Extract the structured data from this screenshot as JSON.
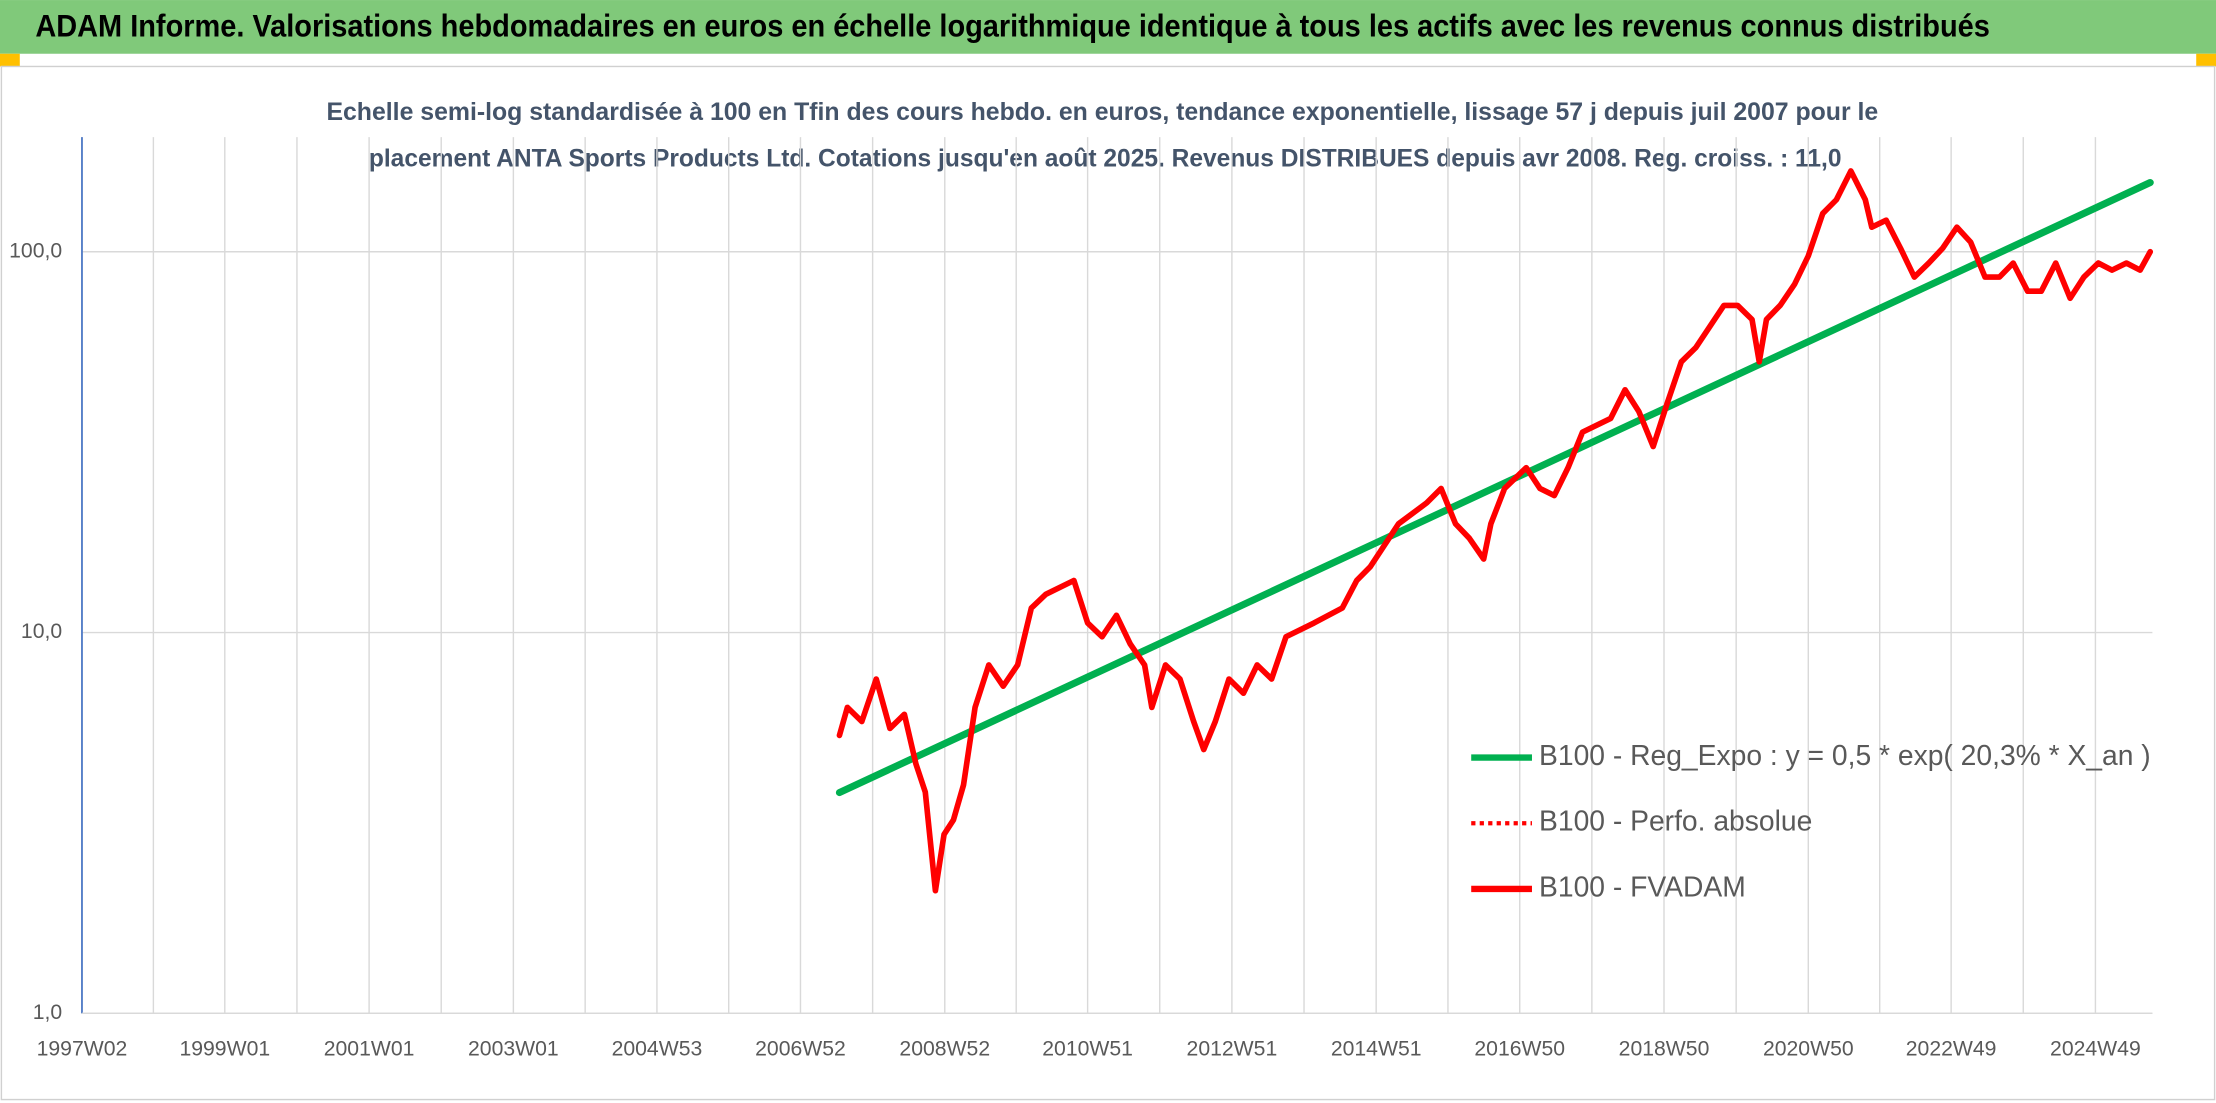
{
  "chart_data": {
    "type": "line",
    "title": "ADAM Informe. Valorisations hebdomadaires en euros en échelle logarithmique identique à tous les actifs avec les revenus connus distribués",
    "subtitle": [
      "Echelle semi-log standardisée à 100 en Tfin des cours hebdo. en euros, tendance exponentielle, lissage 57 j depuis juil 2007 pour le",
      "placement ANTA Sports Products Ltd. Cotations jusqu'en août 2025. Revenus DISTRIBUES depuis avr 2008. Reg. croiss. : 11,0"
    ],
    "log_scale": true,
    "grid": true,
    "legend": "right",
    "xlim": [
      1997.02,
      2025.72
    ],
    "xticks": [
      {
        "value": 1997.02,
        "label": "1997W02"
      },
      {
        "value": 1999.0,
        "label": "1999W01"
      },
      {
        "value": 2001.0,
        "label": "2001W01"
      },
      {
        "value": 2003.0,
        "label": "2003W01"
      },
      {
        "value": 2004.99,
        "label": "2004W53"
      },
      {
        "value": 2006.98,
        "label": "2006W52"
      },
      {
        "value": 2008.98,
        "label": "2008W52"
      },
      {
        "value": 2010.96,
        "label": "2010W51"
      },
      {
        "value": 2012.96,
        "label": "2012W51"
      },
      {
        "value": 2014.96,
        "label": "2014W51"
      },
      {
        "value": 2016.95,
        "label": "2016W50"
      },
      {
        "value": 2018.95,
        "label": "2018W50"
      },
      {
        "value": 2020.95,
        "label": "2020W50"
      },
      {
        "value": 2022.93,
        "label": "2022W49"
      },
      {
        "value": 2024.93,
        "label": "2024W49"
      }
    ],
    "ylim": [
      1,
      200
    ],
    "yticks": [
      {
        "value": 1,
        "label": "1,0"
      },
      {
        "value": 10,
        "label": "10,0"
      },
      {
        "value": 100,
        "label": "100,0"
      }
    ],
    "series": [
      {
        "name": "B100 - Reg_Expo : y = 0,5 * exp( 20,3% *  X_an )",
        "color": "#00b050",
        "style": "solid",
        "x": [
          2007.52,
          2025.69
        ],
        "values": [
          3.8,
          152
        ]
      },
      {
        "name": "B100 - Perfo. absolue",
        "color": "#ff0000",
        "style": "dotted",
        "x": [],
        "values": []
      },
      {
        "name": "B100 - FVADAM",
        "color": "#ff0000",
        "style": "solid",
        "x": [
          2007.52,
          2007.63,
          2007.83,
          2008.03,
          2008.22,
          2008.42,
          2008.58,
          2008.71,
          2008.85,
          2008.97,
          2009.1,
          2009.24,
          2009.4,
          2009.59,
          2009.79,
          2009.99,
          2010.18,
          2010.38,
          2010.77,
          2010.96,
          2011.16,
          2011.36,
          2011.55,
          2011.75,
          2011.85,
          2012.04,
          2012.24,
          2012.43,
          2012.57,
          2012.73,
          2012.92,
          2013.12,
          2013.31,
          2013.51,
          2013.71,
          2014.1,
          2014.49,
          2014.69,
          2014.88,
          2015.27,
          2015.66,
          2015.86,
          2016.06,
          2016.25,
          2016.45,
          2016.55,
          2016.74,
          2017.04,
          2017.23,
          2017.43,
          2017.62,
          2017.82,
          2018.21,
          2018.41,
          2018.6,
          2018.8,
          2018.99,
          2019.19,
          2019.39,
          2019.78,
          2019.97,
          2020.17,
          2020.27,
          2020.37,
          2020.56,
          2020.76,
          2020.95,
          2021.15,
          2021.34,
          2021.54,
          2021.74,
          2021.83,
          2022.03,
          2022.23,
          2022.42,
          2022.62,
          2022.81,
          2023.01,
          2023.2,
          2023.4,
          2023.6,
          2023.79,
          2023.99,
          2024.18,
          2024.38,
          2024.58,
          2024.77,
          2024.97,
          2025.16,
          2025.36,
          2025.55,
          2025.69
        ],
        "values": [
          5.37,
          6.36,
          5.84,
          7.55,
          5.6,
          6.1,
          4.52,
          3.81,
          2.1,
          2.95,
          3.22,
          3.98,
          6.36,
          8.22,
          7.23,
          8.22,
          11.6,
          12.6,
          13.7,
          10.6,
          9.75,
          11.1,
          9.34,
          8.22,
          6.36,
          8.22,
          7.55,
          5.84,
          4.93,
          5.84,
          7.55,
          6.93,
          8.22,
          7.55,
          9.75,
          10.6,
          11.6,
          13.7,
          14.9,
          19.3,
          21.9,
          23.9,
          19.3,
          17.7,
          15.6,
          19.3,
          23.9,
          27.1,
          23.9,
          22.9,
          27.1,
          33.6,
          36.5,
          43.4,
          38.1,
          30.8,
          39.8,
          51.4,
          56.0,
          72.3,
          72.3,
          66.4,
          51.4,
          66.4,
          72.3,
          82.2,
          97.5,
          126,
          137,
          163,
          137,
          116,
          121,
          102,
          85.8,
          93.4,
          102,
          116,
          106,
          85.8,
          85.8,
          93.4,
          78.8,
          78.8,
          93.4,
          75.5,
          85.8,
          93.4,
          89.5,
          93.4,
          89.5,
          100
        ]
      }
    ]
  }
}
